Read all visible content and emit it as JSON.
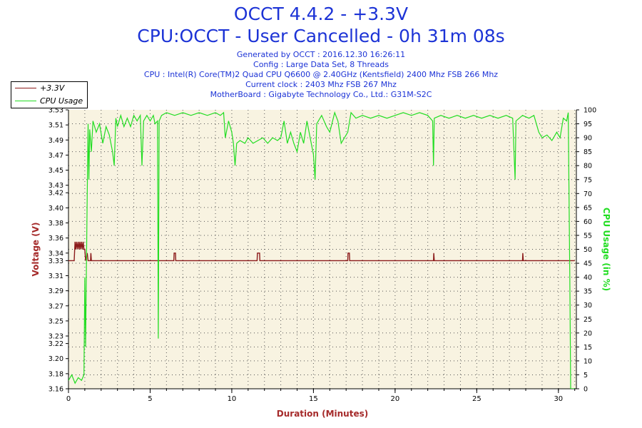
{
  "header": {
    "title": "OCCT 4.4.2 - +3.3V",
    "subtitle": "CPU:OCCT - User Cancelled - 0h 31m 08s",
    "generated": "Generated by OCCT : 2016.12.30 16:26:11",
    "config": "Config : Large Data Set, 8 Threads",
    "cpu": "CPU : Intel(R) Core(TM)2 Quad CPU Q6600 @ 2.40GHz (Kentsfield) 2400 Mhz FSB 266 Mhz",
    "clock": "Current clock : 2403 Mhz FSB 267 Mhz",
    "motherboard": "MotherBoard : Gigabyte Technology Co., Ltd.: G31M-S2C"
  },
  "legend": {
    "voltage_label": "+3.3V",
    "cpu_label": "CPU Usage"
  },
  "colors": {
    "voltage": "#8b1a1a",
    "cpu": "#22dd22",
    "plot_bg": "#f8f3e1",
    "axis_label_left": "#a52a2a",
    "axis_label_right": "#22dd22",
    "xlabel": "#a52a2a",
    "title": "#1c33d6"
  },
  "chart_data": {
    "type": "line",
    "xlabel": "Duration (Minutes)",
    "ylabel": "Voltage (V)",
    "y2label": "CPU Usage (in %)",
    "xlim": [
      0,
      31.1
    ],
    "ylim": [
      3.16,
      3.53
    ],
    "y2lim": [
      0,
      100
    ],
    "x_ticks": [
      0,
      5,
      10,
      15,
      20,
      25,
      30
    ],
    "y_ticks": [
      3.16,
      3.18,
      3.2,
      3.22,
      3.23,
      3.25,
      3.27,
      3.29,
      3.31,
      3.33,
      3.34,
      3.36,
      3.38,
      3.4,
      3.42,
      3.43,
      3.45,
      3.47,
      3.49,
      3.51,
      3.53
    ],
    "y2_ticks": [
      0,
      5,
      10,
      15,
      20,
      25,
      30,
      35,
      40,
      45,
      50,
      55,
      60,
      65,
      70,
      75,
      80,
      85,
      90,
      95,
      100
    ],
    "grid": true,
    "legend_position": "top-left",
    "series": [
      {
        "name": "+3.3V",
        "axis": "left",
        "points": [
          [
            0,
            3.33
          ],
          [
            0.35,
            3.33
          ],
          [
            0.4,
            3.355
          ],
          [
            0.45,
            3.345
          ],
          [
            0.5,
            3.355
          ],
          [
            0.55,
            3.345
          ],
          [
            0.6,
            3.355
          ],
          [
            0.65,
            3.345
          ],
          [
            0.7,
            3.355
          ],
          [
            0.75,
            3.345
          ],
          [
            0.8,
            3.355
          ],
          [
            0.85,
            3.345
          ],
          [
            0.9,
            3.355
          ],
          [
            0.95,
            3.345
          ],
          [
            1.0,
            3.345
          ],
          [
            1.05,
            3.33
          ],
          [
            1.15,
            3.34
          ],
          [
            1.2,
            3.33
          ],
          [
            1.35,
            3.33
          ],
          [
            1.37,
            3.34
          ],
          [
            1.4,
            3.33
          ],
          [
            6.45,
            3.33
          ],
          [
            6.47,
            3.34
          ],
          [
            6.55,
            3.34
          ],
          [
            6.57,
            3.33
          ],
          [
            11.55,
            3.33
          ],
          [
            11.57,
            3.34
          ],
          [
            11.7,
            3.34
          ],
          [
            11.72,
            3.33
          ],
          [
            17.1,
            3.33
          ],
          [
            17.12,
            3.34
          ],
          [
            17.2,
            3.34
          ],
          [
            17.22,
            3.33
          ],
          [
            22.35,
            3.33
          ],
          [
            22.37,
            3.34
          ],
          [
            22.4,
            3.33
          ],
          [
            27.8,
            3.33
          ],
          [
            27.82,
            3.34
          ],
          [
            27.85,
            3.33
          ],
          [
            31.0,
            3.33
          ]
        ]
      },
      {
        "name": "CPU Usage",
        "axis": "right",
        "points": [
          [
            0.0,
            3
          ],
          [
            0.2,
            5
          ],
          [
            0.4,
            2
          ],
          [
            0.6,
            4
          ],
          [
            0.8,
            3
          ],
          [
            0.95,
            5
          ],
          [
            1.0,
            40
          ],
          [
            1.05,
            15
          ],
          [
            1.1,
            45
          ],
          [
            1.15,
            70
          ],
          [
            1.2,
            95
          ],
          [
            1.25,
            75
          ],
          [
            1.3,
            93
          ],
          [
            1.4,
            85
          ],
          [
            1.5,
            96
          ],
          [
            1.7,
            92
          ],
          [
            1.9,
            95
          ],
          [
            2.1,
            88
          ],
          [
            2.3,
            94
          ],
          [
            2.5,
            91
          ],
          [
            2.7,
            85
          ],
          [
            2.8,
            80
          ],
          [
            2.9,
            97
          ],
          [
            3.0,
            94
          ],
          [
            3.2,
            98
          ],
          [
            3.4,
            94
          ],
          [
            3.6,
            97
          ],
          [
            3.8,
            94
          ],
          [
            4.0,
            98
          ],
          [
            4.2,
            96
          ],
          [
            4.4,
            98
          ],
          [
            4.5,
            80
          ],
          [
            4.6,
            96
          ],
          [
            4.8,
            98
          ],
          [
            5.0,
            96
          ],
          [
            5.2,
            98
          ],
          [
            5.3,
            95
          ],
          [
            5.45,
            96
          ],
          [
            5.5,
            18
          ],
          [
            5.55,
            96
          ],
          [
            5.7,
            98
          ],
          [
            6.0,
            99
          ],
          [
            6.5,
            98
          ],
          [
            7.0,
            99
          ],
          [
            7.5,
            98
          ],
          [
            8.0,
            99
          ],
          [
            8.5,
            98
          ],
          [
            9.0,
            99
          ],
          [
            9.3,
            98
          ],
          [
            9.5,
            99
          ],
          [
            9.6,
            90
          ],
          [
            9.8,
            96
          ],
          [
            10.0,
            92
          ],
          [
            10.1,
            88
          ],
          [
            10.2,
            80
          ],
          [
            10.3,
            88
          ],
          [
            10.5,
            89
          ],
          [
            10.8,
            88
          ],
          [
            11.0,
            90
          ],
          [
            11.3,
            88
          ],
          [
            11.6,
            89
          ],
          [
            11.9,
            90
          ],
          [
            12.2,
            88
          ],
          [
            12.5,
            90
          ],
          [
            12.8,
            89
          ],
          [
            13.0,
            90
          ],
          [
            13.2,
            96
          ],
          [
            13.4,
            88
          ],
          [
            13.6,
            92
          ],
          [
            13.8,
            88
          ],
          [
            14.0,
            85
          ],
          [
            14.2,
            92
          ],
          [
            14.4,
            88
          ],
          [
            14.6,
            96
          ],
          [
            14.8,
            90
          ],
          [
            15.0,
            84
          ],
          [
            15.1,
            75
          ],
          [
            15.2,
            95
          ],
          [
            15.5,
            98
          ],
          [
            15.8,
            94
          ],
          [
            16.0,
            92
          ],
          [
            16.3,
            99
          ],
          [
            16.5,
            96
          ],
          [
            16.7,
            88
          ],
          [
            16.9,
            90
          ],
          [
            17.1,
            92
          ],
          [
            17.3,
            99
          ],
          [
            17.6,
            97
          ],
          [
            18.0,
            98
          ],
          [
            18.5,
            97
          ],
          [
            19.0,
            98
          ],
          [
            19.5,
            97
          ],
          [
            20.0,
            98
          ],
          [
            20.5,
            99
          ],
          [
            21.0,
            98
          ],
          [
            21.5,
            99
          ],
          [
            22.0,
            98
          ],
          [
            22.3,
            96
          ],
          [
            22.35,
            80
          ],
          [
            22.4,
            97
          ],
          [
            22.8,
            98
          ],
          [
            23.3,
            97
          ],
          [
            23.8,
            98
          ],
          [
            24.3,
            97
          ],
          [
            24.8,
            98
          ],
          [
            25.3,
            97
          ],
          [
            25.8,
            98
          ],
          [
            26.3,
            97
          ],
          [
            26.8,
            98
          ],
          [
            27.2,
            97
          ],
          [
            27.3,
            82
          ],
          [
            27.35,
            75
          ],
          [
            27.4,
            96
          ],
          [
            27.8,
            98
          ],
          [
            28.2,
            97
          ],
          [
            28.5,
            98
          ],
          [
            28.8,
            92
          ],
          [
            29.0,
            90
          ],
          [
            29.3,
            91
          ],
          [
            29.6,
            89
          ],
          [
            29.9,
            92
          ],
          [
            30.1,
            90
          ],
          [
            30.3,
            97
          ],
          [
            30.5,
            96
          ],
          [
            30.6,
            99
          ],
          [
            30.7,
            40
          ],
          [
            30.75,
            0
          ],
          [
            31.0,
            0
          ]
        ]
      }
    ]
  }
}
